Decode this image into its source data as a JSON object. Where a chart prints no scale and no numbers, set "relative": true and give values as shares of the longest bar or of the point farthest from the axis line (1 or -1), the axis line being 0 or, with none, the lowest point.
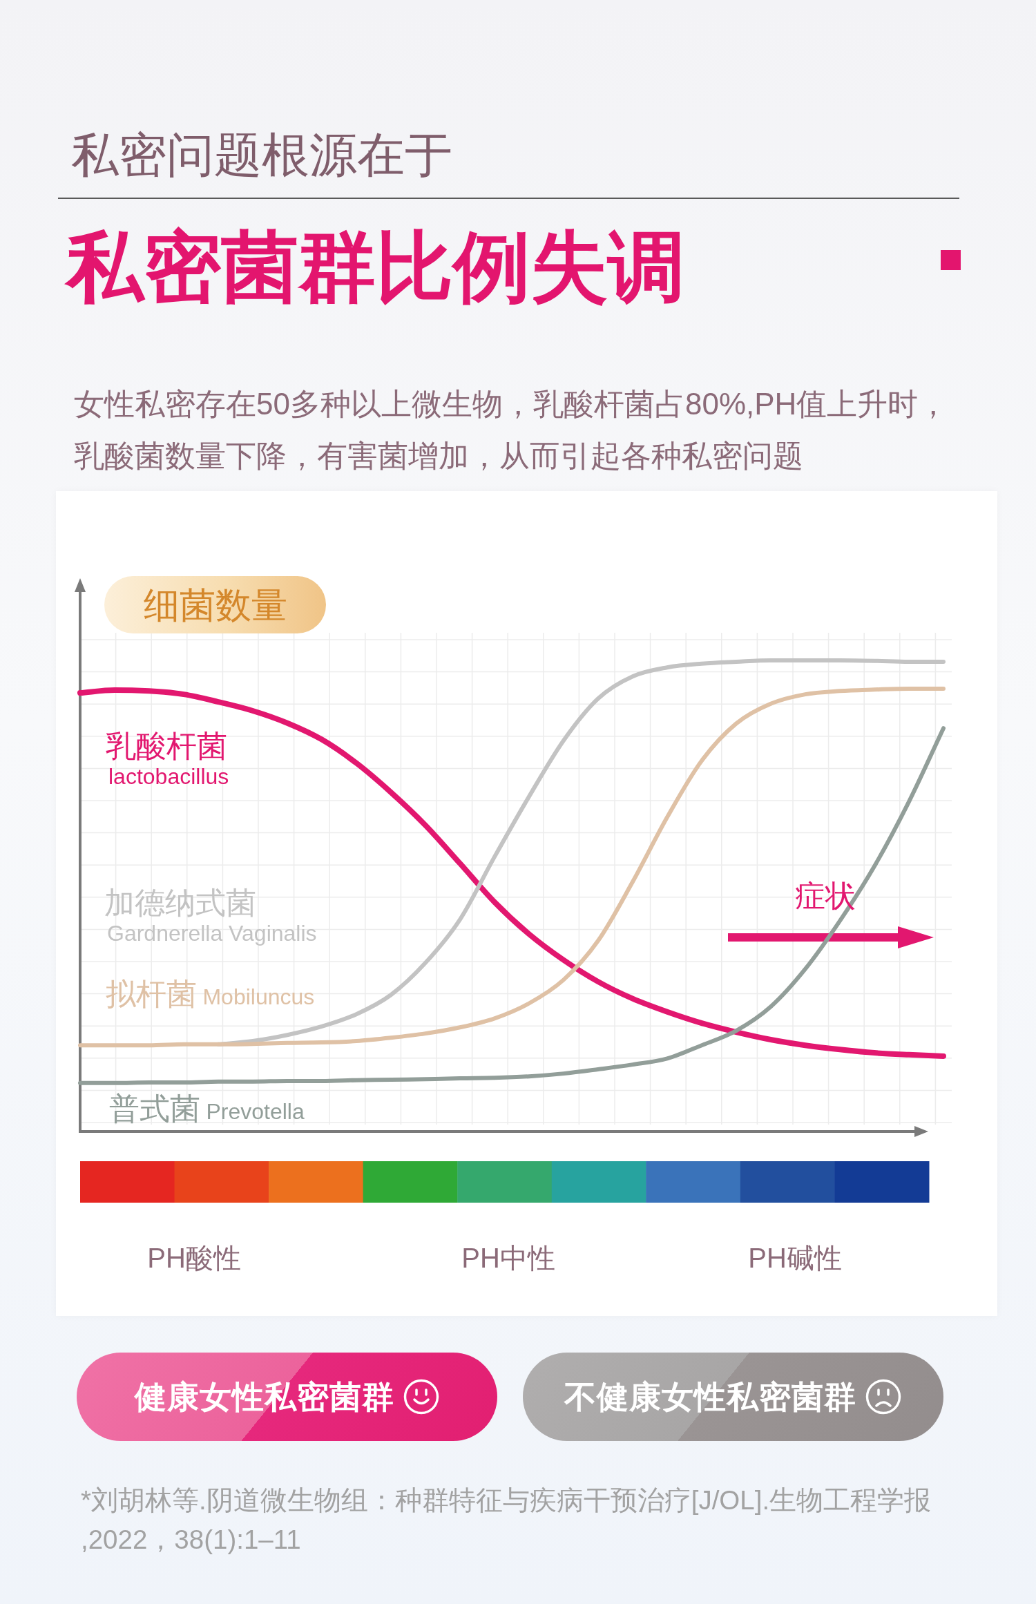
{
  "chart_data": {
    "type": "line",
    "title": "私密菌群比例失调",
    "subtitle": "私密问题根源在于",
    "ylabel": "细菌数量",
    "relative": true,
    "grid": true,
    "categories": [
      null,
      null,
      null,
      null,
      null,
      null,
      null,
      null,
      null,
      null,
      null,
      null,
      null,
      null,
      null,
      null,
      null,
      null,
      null,
      null,
      null,
      null,
      null,
      null,
      null,
      null
    ],
    "series": [
      {
        "name": "乳酸杆菌 lactobacillus",
        "color": "#e2176f",
        "values": [
          0.931,
          0.937,
          0.935,
          0.928,
          0.912,
          0.893,
          0.867,
          0.832,
          0.782,
          0.72,
          0.65,
          0.569,
          0.487,
          0.419,
          0.364,
          0.318,
          0.282,
          0.254,
          0.23,
          0.211,
          0.195,
          0.183,
          0.174,
          0.167,
          0.163,
          0.16
        ]
      },
      {
        "name": "加德纳式菌 Gardnerella Vaginalis",
        "color": "#c3c3c3",
        "values": [
          null,
          null,
          null,
          null,
          0.185,
          0.192,
          0.205,
          0.223,
          0.249,
          0.29,
          0.358,
          0.45,
          0.583,
          0.711,
          0.83,
          0.919,
          0.966,
          0.985,
          0.993,
          0.997,
          1.0,
          1.0,
          1.0,
          0.999,
          0.997,
          0.997
        ]
      },
      {
        "name": "拟杆菌 Mobiluncus",
        "color": "#dfc1a5",
        "values": [
          0.183,
          0.183,
          0.183,
          0.185,
          0.185,
          0.186,
          0.188,
          0.189,
          0.192,
          0.199,
          0.208,
          0.221,
          0.24,
          0.272,
          0.322,
          0.405,
          0.53,
          0.667,
          0.787,
          0.866,
          0.908,
          0.928,
          0.935,
          0.938,
          0.94,
          0.94
        ]
      },
      {
        "name": "普式菌 Prevotella",
        "color": "#929e99",
        "values": [
          0.103,
          0.103,
          0.104,
          0.104,
          0.106,
          0.106,
          0.107,
          0.107,
          0.109,
          0.11,
          0.111,
          0.113,
          0.114,
          0.117,
          0.123,
          0.132,
          0.142,
          0.155,
          0.183,
          0.214,
          0.265,
          0.345,
          0.447,
          0.563,
          0.7,
          0.856
        ]
      }
    ],
    "annotations": [
      "女性私密存在50多种以上微生物，乳酸杆菌占80%,PH值上升时，乳酸菌数量下降，有害菌增加，从而引起各种私密问题",
      "症状",
      "PH酸性",
      "PH中性",
      "PH碱性",
      "健康女性私密菌群",
      "不健康女性私密菌群",
      "*刘胡林等.阴道微生物组：种群特征与疾病干预治疗[J/OL].生物工程学报,2022，38(1):1–11"
    ]
  }
}
